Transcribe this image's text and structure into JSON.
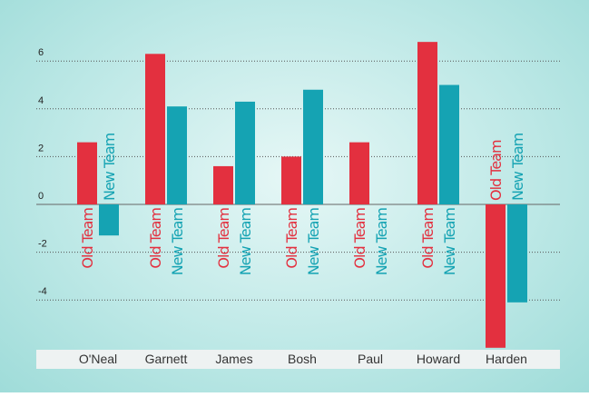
{
  "chart_data": {
    "type": "bar",
    "categories": [
      "O'Neal",
      "Garnett",
      "James",
      "Bosh",
      "Paul",
      "Howard",
      "Harden"
    ],
    "series": [
      {
        "name": "Old Team",
        "color": "#e3303f",
        "values": [
          2.6,
          6.3,
          1.6,
          2.0,
          2.6,
          6.8,
          -6.0
        ]
      },
      {
        "name": "New Team",
        "color": "#15a3b3",
        "values": [
          -1.3,
          4.1,
          4.3,
          4.8,
          0,
          5.0,
          -4.1
        ]
      }
    ],
    "ylim": [
      -6,
      8
    ],
    "yticks": [
      -4,
      -2,
      0,
      2,
      4,
      6
    ],
    "grid": true
  }
}
